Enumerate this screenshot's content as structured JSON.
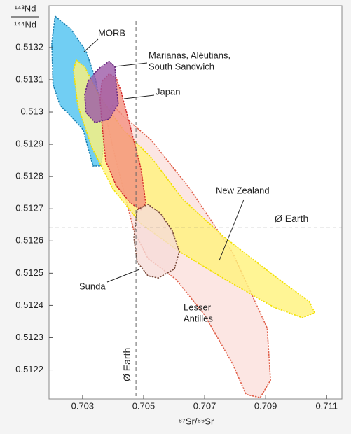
{
  "chart_data": {
    "type": "field",
    "y_label": {
      "numerator": "¹⁴³Nd",
      "denominator": "¹⁴⁴Nd"
    },
    "x_label": "⁸⁷Sr/⁸⁶Sr",
    "xlim": [
      0.7019,
      0.7115
    ],
    "ylim": [
      0.51211,
      0.51333
    ],
    "xticks": [
      0.703,
      0.705,
      0.707,
      0.709,
      0.711
    ],
    "yticks": [
      0.5122,
      0.5123,
      0.5124,
      0.5125,
      0.5126,
      0.5127,
      0.5128,
      0.5129,
      0.513,
      0.5131,
      0.5132
    ],
    "reference": {
      "label": "Ø Earth",
      "x": 0.70475,
      "y": 0.512641
    },
    "series": [
      {
        "label": [
          "Lesser",
          "Antilles"
        ],
        "color": "#fbe0dc",
        "stroke": "#e0604a",
        "x": [
          0.70399,
          0.70433,
          0.70525,
          0.70652,
          0.7079,
          0.70905,
          0.70916,
          0.70882,
          0.70836,
          0.7079,
          0.70698,
          0.70606,
          0.70514,
          0.70468,
          0.70433,
          0.70399,
          0.70376
        ],
        "y": [
          0.513021,
          0.512988,
          0.512913,
          0.512762,
          0.512567,
          0.51233,
          0.512168,
          0.512114,
          0.512124,
          0.512222,
          0.512373,
          0.512481,
          0.512546,
          0.512632,
          0.512762,
          0.512891,
          0.512988
        ]
      },
      {
        "label": [
          "MORB"
        ],
        "color": "#4ec2f0",
        "stroke": "#1a7fb0",
        "x": [
          0.7021,
          0.70261,
          0.70311,
          0.70341,
          0.70364,
          0.70371,
          0.7036,
          0.70334,
          0.70302,
          0.70261,
          0.70226,
          0.70203,
          0.70199
        ],
        "y": [
          0.513297,
          0.513258,
          0.513189,
          0.513107,
          0.512999,
          0.512913,
          0.512833,
          0.512833,
          0.512945,
          0.512988,
          0.513021,
          0.513086,
          0.513215
        ]
      },
      {
        "label": [
          "New Zealand"
        ],
        "color": "#fff27a",
        "stroke": "#f2e000",
        "x": [
          0.70279,
          0.70307,
          0.70353,
          0.70433,
          0.70525,
          0.70629,
          0.70767,
          0.70928,
          0.71043,
          0.71061,
          0.7102,
          0.70928,
          0.70767,
          0.70617,
          0.70491,
          0.70399,
          0.7033,
          0.70284,
          0.7027
        ],
        "y": [
          0.513161,
          0.51314,
          0.513053,
          0.512945,
          0.512859,
          0.512729,
          0.51261,
          0.512492,
          0.512412,
          0.512377,
          0.512362,
          0.512394,
          0.512481,
          0.512567,
          0.512654,
          0.512762,
          0.512891,
          0.513021,
          0.513129
        ]
      },
      {
        "label": [
          "Japan"
        ],
        "color": "#f4907f",
        "stroke": "#d42a2a",
        "x": [
          0.70364,
          0.70387,
          0.7041,
          0.70426,
          0.70456,
          0.70491,
          0.70507,
          0.70491,
          0.70456,
          0.7041,
          0.70376,
          0.70364,
          0.70357
        ],
        "y": [
          0.513096,
          0.513118,
          0.513107,
          0.513064,
          0.512956,
          0.512826,
          0.512718,
          0.512697,
          0.512718,
          0.512772,
          0.512848,
          0.512956,
          0.513042
        ]
      },
      {
        "label": [
          "Marianas, Alëutians,",
          "South Sandwich"
        ],
        "color": "#9c5aa8",
        "stroke": "#6a2a80",
        "x": [
          0.70318,
          0.70353,
          0.70387,
          0.70406,
          0.7041,
          0.70417,
          0.70387,
          0.70341,
          0.70311,
          0.70307
        ],
        "y": [
          0.513096,
          0.513135,
          0.513157,
          0.51314,
          0.513086,
          0.513025,
          0.512978,
          0.512967,
          0.512999,
          0.513053
        ]
      },
      {
        "label": [
          "Sunda"
        ],
        "color": "#f6dcd8",
        "stroke": "#7a4a3a",
        "x": [
          0.70479,
          0.70514,
          0.70555,
          0.70594,
          0.70617,
          0.70601,
          0.70548,
          0.70514,
          0.70479,
          0.70468
        ],
        "y": [
          0.512697,
          0.512714,
          0.512686,
          0.512632,
          0.512567,
          0.512513,
          0.512485,
          0.512492,
          0.512535,
          0.51261
        ]
      }
    ]
  }
}
